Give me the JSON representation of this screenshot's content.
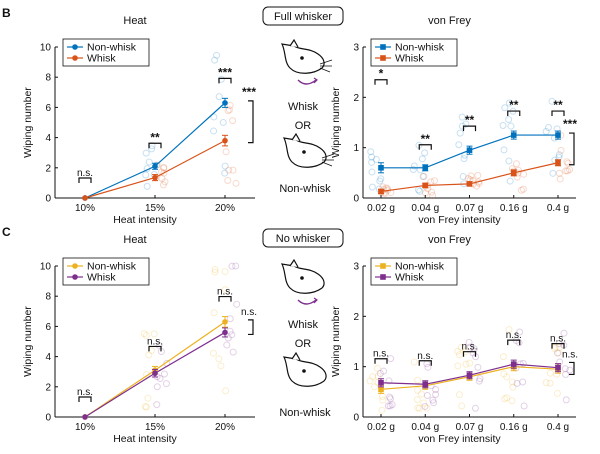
{
  "colors": {
    "nonwhisk_top": "#0072BD",
    "whisk_top": "#D95319",
    "nonwhisk_bottom": "#EDB120",
    "whisk_bottom": "#7E2F8E"
  },
  "sections": [
    {
      "panel_letter": "B",
      "condition_label": "Full whisker",
      "mouse_labels": {
        "top": "Whisk",
        "middle": "OR",
        "bottom": "Non-whisk"
      }
    },
    {
      "panel_letter": "C",
      "condition_label": "No whisker",
      "mouse_labels": {
        "top": "Whisk",
        "middle": "OR",
        "bottom": "Non-whisk"
      }
    }
  ],
  "chart_data": [
    {
      "id": "B-heat",
      "type": "line",
      "title": "Heat",
      "xlabel": "Heat intensity",
      "ylabel": "Wiping number",
      "categories": [
        "10%",
        "15%",
        "20%"
      ],
      "ylim": [
        0,
        10
      ],
      "yticks": [
        0,
        2,
        4,
        6,
        8,
        10
      ],
      "legend": "top-left",
      "series": [
        {
          "name": "Non-whisk",
          "color": "#0072BD",
          "marker": "circle",
          "values": [
            0,
            2.1,
            6.3
          ],
          "err": [
            0,
            0.2,
            0.3
          ]
        },
        {
          "name": "Whisk",
          "color": "#D95319",
          "marker": "circle",
          "values": [
            0,
            1.35,
            3.8
          ],
          "err": [
            0,
            0.2,
            0.35
          ]
        }
      ],
      "annotations": [
        "n.s.",
        "**",
        "***"
      ],
      "group_annotation": "***"
    },
    {
      "id": "B-vf",
      "type": "line",
      "title": "von Frey",
      "xlabel": "von Frey intensity",
      "ylabel": "Wiping number",
      "categories": [
        "0.02 g",
        "0.04 g",
        "0.07 g",
        "0.16 g",
        "0.4 g"
      ],
      "ylim": [
        0,
        3
      ],
      "yticks": [
        0,
        1,
        2,
        3
      ],
      "legend": "top-left",
      "series": [
        {
          "name": "Non-whisk",
          "color": "#0072BD",
          "marker": "square",
          "values": [
            0.6,
            0.6,
            0.95,
            1.25,
            1.25
          ],
          "err": [
            0.1,
            0.06,
            0.08,
            0.08,
            0.08
          ]
        },
        {
          "name": "Whisk",
          "color": "#D95319",
          "marker": "square",
          "values": [
            0.13,
            0.25,
            0.28,
            0.5,
            0.7
          ],
          "err": [
            0.04,
            0.04,
            0.04,
            0.06,
            0.06
          ]
        }
      ],
      "annotations": [
        "*",
        "**",
        "**",
        "**",
        "**"
      ],
      "group_annotation": "***"
    },
    {
      "id": "C-heat",
      "type": "line",
      "title": "Heat",
      "xlabel": "Heat intensity",
      "ylabel": "Wiping number",
      "categories": [
        "10%",
        "15%",
        "20%"
      ],
      "ylim": [
        0,
        10
      ],
      "yticks": [
        0,
        2,
        4,
        6,
        8,
        10
      ],
      "legend": "top-left",
      "series": [
        {
          "name": "Non-whisk",
          "color": "#EDB120",
          "marker": "circle",
          "values": [
            0,
            3.1,
            6.3
          ],
          "err": [
            0,
            0.25,
            0.35
          ]
        },
        {
          "name": "Whisk",
          "color": "#7E2F8E",
          "marker": "circle",
          "values": [
            0,
            2.9,
            5.6
          ],
          "err": [
            0,
            0.25,
            0.3
          ]
        }
      ],
      "annotations": [
        "n.s.",
        "n.s.",
        "n.s."
      ],
      "group_annotation": "n.s."
    },
    {
      "id": "C-vf",
      "type": "line",
      "title": "von Frey",
      "xlabel": "von Frey intensity",
      "ylabel": "Wiping number",
      "categories": [
        "0.02 g",
        "0.04 g",
        "0.07 g",
        "0.16 g",
        "0.4 g"
      ],
      "ylim": [
        0,
        3
      ],
      "yticks": [
        0,
        1,
        2,
        3
      ],
      "legend": "top-left",
      "series": [
        {
          "name": "Non-whisk",
          "color": "#EDB120",
          "marker": "square",
          "values": [
            0.55,
            0.62,
            0.8,
            1.0,
            0.95
          ],
          "err": [
            0.08,
            0.07,
            0.07,
            0.08,
            0.08
          ]
        },
        {
          "name": "Whisk",
          "color": "#7E2F8E",
          "marker": "square",
          "values": [
            0.68,
            0.65,
            0.83,
            1.05,
            0.98
          ],
          "err": [
            0.08,
            0.07,
            0.07,
            0.08,
            0.08
          ]
        }
      ],
      "annotations": [
        "n.s.",
        "n.s.",
        "n.s.",
        "n.s.",
        "n.s."
      ],
      "group_annotation": "n.s."
    }
  ]
}
